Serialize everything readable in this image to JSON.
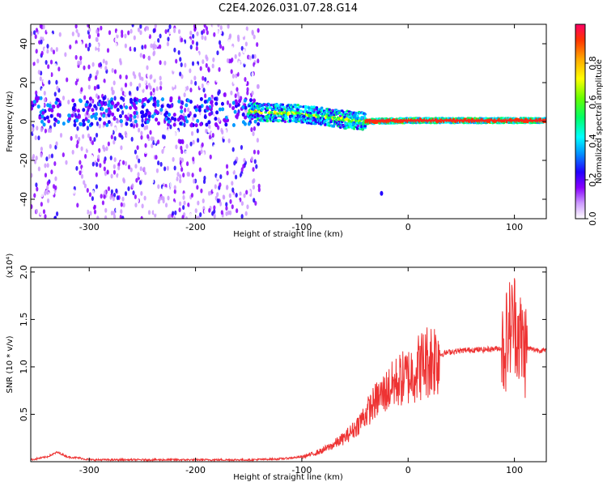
{
  "title": "C2E4.2026.031.07.28.G14",
  "chart_data": [
    {
      "type": "heatmap",
      "title": "C2E4.2026.031.07.28.G14",
      "xlabel": "Height of straight line (km)",
      "ylabel": "Frequency (Hz)",
      "xlim": [
        -355,
        130
      ],
      "ylim": [
        -50,
        50
      ],
      "x_ticks": [
        -300,
        -200,
        -100,
        0,
        100
      ],
      "y_ticks": [
        -40,
        -20,
        0,
        20,
        40
      ],
      "colorbar": {
        "label": "Normalized spectral amplitude",
        "range": [
          0,
          1
        ],
        "ticks": [
          0.0,
          0.2,
          0.4,
          0.6,
          0.8
        ],
        "colors": [
          "#ffffff",
          "#cc99ff",
          "#8800ff",
          "#2200ff",
          "#0099ff",
          "#00ffff",
          "#00ff66",
          "#66ff00",
          "#ffff00",
          "#ffaa00",
          "#ff3300",
          "#ff0066"
        ]
      },
      "features": {
        "noise_region_x": [
          -355,
          -140
        ],
        "trend_band_x": [
          -150,
          130
        ],
        "trend_center_hz": [
          [
            -150,
            5
          ],
          [
            -100,
            4
          ],
          [
            -60,
            1
          ],
          [
            -40,
            0
          ],
          [
            0,
            0.5
          ],
          [
            130,
            0.5
          ]
        ]
      }
    },
    {
      "type": "line",
      "xlabel": "Height of straight line (km)",
      "ylabel": "SNR (10 * v/v)",
      "y_multiplier": "(x10⁴)",
      "xlim": [
        -355,
        130
      ],
      "ylim": [
        0,
        2.05
      ],
      "x_ticks": [
        -300,
        -200,
        -100,
        0,
        100
      ],
      "y_ticks": [
        0.5,
        1.0,
        1.5,
        2.0
      ],
      "line_color": "#ee3333",
      "series": [
        {
          "x": [
            -355,
            -340,
            -330,
            -320,
            -310,
            -300,
            -280,
            -250,
            -200,
            -150,
            -120,
            -100,
            -90,
            -80,
            -70,
            -60,
            -50,
            -40,
            -30,
            -20,
            -10,
            0,
            10,
            20,
            30,
            40,
            50,
            60,
            70,
            80,
            90,
            95,
            100,
            105,
            110,
            120,
            130
          ],
          "values": [
            0.02,
            0.05,
            0.1,
            0.05,
            0.04,
            0.02,
            0.02,
            0.02,
            0.02,
            0.02,
            0.03,
            0.05,
            0.08,
            0.12,
            0.18,
            0.25,
            0.35,
            0.5,
            0.65,
            0.75,
            0.85,
            0.9,
            1.0,
            1.08,
            1.13,
            1.16,
            1.17,
            1.18,
            1.18,
            1.19,
            1.2,
            1.4,
            1.5,
            1.3,
            1.2,
            1.18,
            1.17
          ]
        }
      ]
    }
  ]
}
